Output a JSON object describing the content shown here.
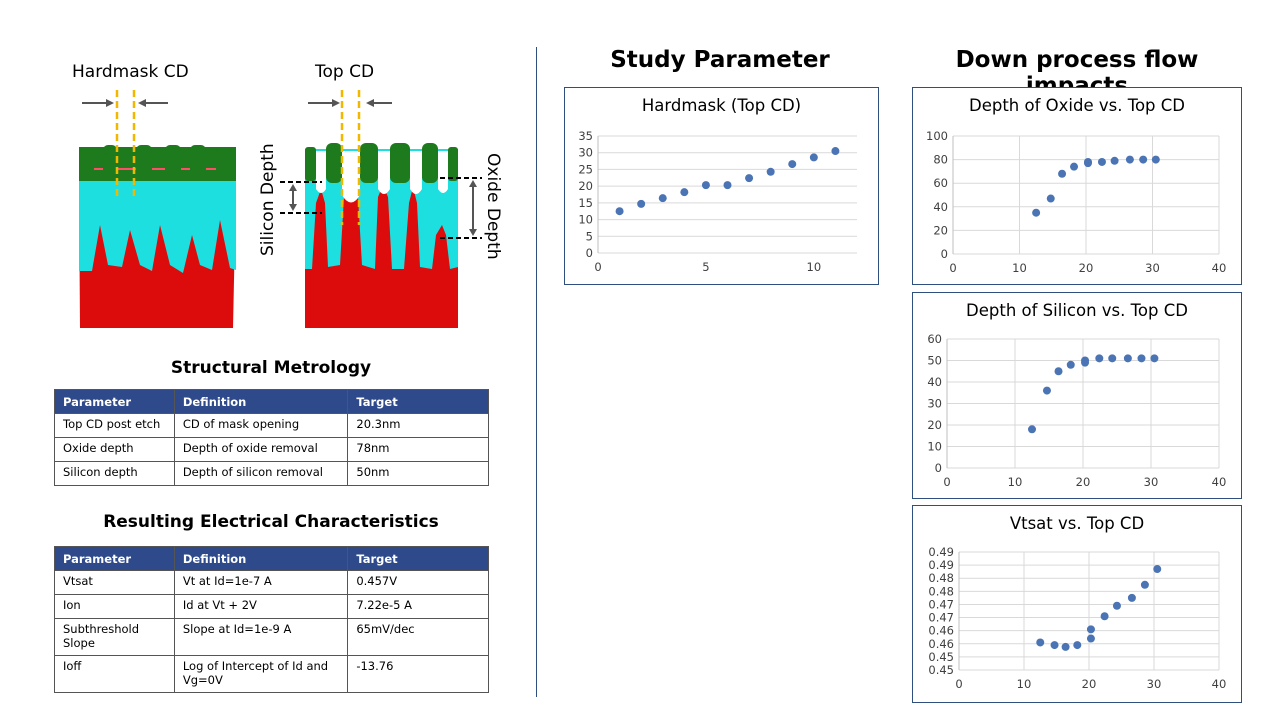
{
  "left": {
    "labels": {
      "hardmask_cd": "Hardmask CD",
      "top_cd": "Top CD",
      "silicon_depth": "Silicon Depth",
      "oxide_depth": "Oxide Depth"
    },
    "structural": {
      "title": "Structural Metrology",
      "headers": [
        "Parameter",
        "Definition",
        "Target"
      ],
      "rows": [
        [
          "Top CD post etch",
          "CD of mask opening",
          "20.3nm"
        ],
        [
          "Oxide depth",
          "Depth of oxide removal",
          "78nm"
        ],
        [
          "Silicon depth",
          "Depth of silicon removal",
          "50nm"
        ]
      ]
    },
    "electrical": {
      "title": "Resulting Electrical Characteristics",
      "headers": [
        "Parameter",
        "Definition",
        "Target"
      ],
      "rows": [
        [
          "Vtsat",
          "Vt at Id=1e-7 A",
          "0.457V"
        ],
        [
          "Ion",
          "Id at Vt + 2V",
          "7.22e-5 A"
        ],
        [
          "Subthreshold Slope",
          "Slope at Id=1e-9 A",
          "65mV/dec"
        ],
        [
          "Ioff",
          "Log of Intercept of Id and Vg=0V",
          "-13.76"
        ]
      ]
    }
  },
  "headings": {
    "study": "Study Parameter",
    "impacts": "Down process flow impacts"
  },
  "colors": {
    "marker": "#4a74b4",
    "frame": "#2f4f7f",
    "table_header": "#2e4a8a",
    "silicon": "#dd0c0c",
    "oxide": "#1ddfe0",
    "hardmask": "#1d7a1d",
    "cd_guide": "#f2b800"
  },
  "chart_data": [
    {
      "type": "scatter",
      "title": "Hardmask (Top CD)",
      "xlim": [
        0,
        12
      ],
      "ylim": [
        0,
        35
      ],
      "xticks": [
        0,
        5,
        10
      ],
      "yticks": [
        0,
        5,
        10,
        15,
        20,
        25,
        30,
        35
      ],
      "ytick_labels": [
        "0",
        "5",
        "10",
        "15",
        "20",
        "25",
        "30",
        "35"
      ],
      "grid": "horizontal",
      "x": [
        1,
        2,
        3,
        4,
        5,
        6,
        7,
        8,
        9,
        10,
        11
      ],
      "y": [
        12.5,
        14.7,
        16.4,
        18.2,
        20.3,
        20.3,
        22.4,
        24.3,
        26.6,
        28.6,
        30.5
      ]
    },
    {
      "type": "scatter",
      "title": "Depth of Oxide vs. Top CD",
      "xlim": [
        0,
        40
      ],
      "ylim": [
        0,
        100
      ],
      "xticks": [
        0,
        10,
        20,
        30,
        40
      ],
      "yticks": [
        0,
        20,
        40,
        60,
        80,
        100
      ],
      "ytick_labels": [
        "0",
        "20",
        "40",
        "60",
        "80",
        "100"
      ],
      "grid": "both",
      "x": [
        12.5,
        14.7,
        16.4,
        18.2,
        20.3,
        20.3,
        22.4,
        24.3,
        26.6,
        28.6,
        30.5
      ],
      "y": [
        35,
        47,
        68,
        74,
        78,
        77,
        78,
        79,
        80,
        80,
        80
      ]
    },
    {
      "type": "scatter",
      "title": "Depth of Silicon vs. Top CD",
      "xlim": [
        0,
        40
      ],
      "ylim": [
        0,
        60
      ],
      "xticks": [
        0,
        10,
        20,
        30,
        40
      ],
      "yticks": [
        0,
        10,
        20,
        30,
        40,
        50,
        60
      ],
      "ytick_labels": [
        "0",
        "10",
        "20",
        "30",
        "40",
        "50",
        "60"
      ],
      "grid": "both",
      "x": [
        12.5,
        14.7,
        16.4,
        18.2,
        20.3,
        20.3,
        22.4,
        24.3,
        26.6,
        28.6,
        30.5
      ],
      "y": [
        18,
        36,
        45,
        48,
        50,
        49,
        51,
        51,
        51,
        51,
        51
      ]
    },
    {
      "type": "scatter",
      "title": "Vtsat vs. Top CD",
      "xlim": [
        0,
        40
      ],
      "ylim": [
        0.445,
        0.49
      ],
      "xticks": [
        0,
        10,
        20,
        30,
        40
      ],
      "yticks": [
        0.445,
        0.45,
        0.455,
        0.46,
        0.465,
        0.47,
        0.475,
        0.48,
        0.485,
        0.49
      ],
      "ytick_labels": [
        "0.45",
        "0.45",
        "0.46",
        "0.46",
        "0.47",
        "0.47",
        "0.48",
        "0.48",
        "0.49",
        "0.49"
      ],
      "grid": "both",
      "x": [
        12.5,
        14.7,
        16.4,
        18.2,
        20.3,
        20.3,
        22.4,
        24.3,
        26.6,
        28.6,
        30.5
      ],
      "y": [
        0.4555,
        0.4545,
        0.4538,
        0.4545,
        0.457,
        0.4605,
        0.4655,
        0.4695,
        0.4725,
        0.4775,
        0.4835
      ]
    }
  ]
}
